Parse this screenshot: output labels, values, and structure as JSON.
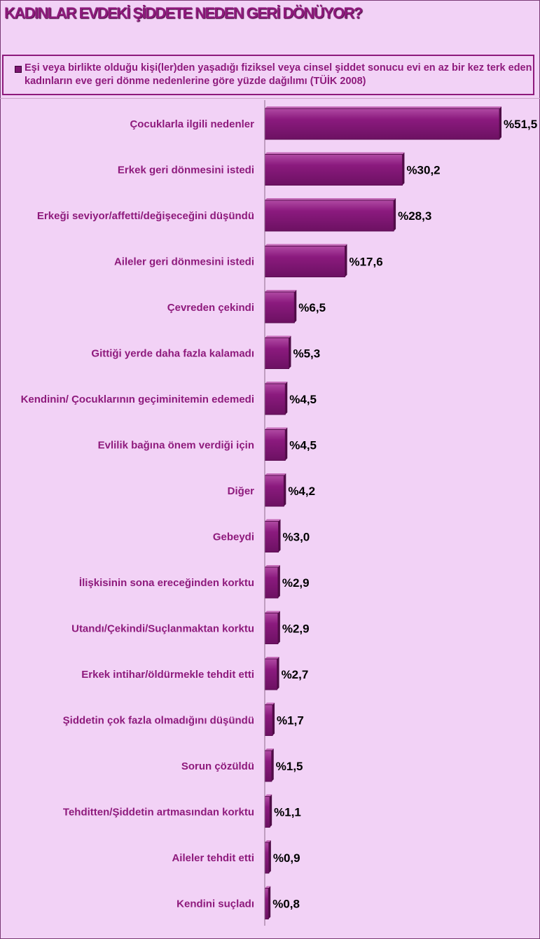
{
  "title": "KADINLAR EVDEKİ ŞİDDETE NEDEN GERİ DÖNÜYOR?",
  "colors": {
    "background": "#f2d2f6",
    "bar_fill": "#8b1a7e",
    "bar_edge": "#5c0f52",
    "label": "#8e1a7c",
    "value_label": "#000000"
  },
  "chart_data": {
    "type": "bar",
    "orientation": "horizontal",
    "title": "KADINLAR EVDEKİ ŞİDDETE NEDEN GERİ DÖNÜYOR?",
    "legend": {
      "position": "top",
      "entries": [
        "Eşi veya birlikte olduğu kişi(ler)den yaşadığı fiziksel veya cinsel şiddet sonucu evi en az bir kez terk eden kadınların eve geri dönme nedenlerine göre yüzde dağılımı (TÜİK 2008)"
      ]
    },
    "xlabel": "",
    "ylabel": "",
    "grid": false,
    "xlim": [
      0,
      51.5
    ],
    "categories": [
      "Çocuklarla ilgili  nedenler",
      "Erkek geri dönmesini istedi",
      "Erkeği seviyor/affetti/değişeceğini  düşündü",
      "Aileler geri dönmesini istedi",
      "Çevreden çekindi",
      "Gittiği  yerde daha fazla kalamadı",
      "Kendinin/  Çocuklarının geçiminitemin edemedi",
      "Evlilik bağına önem verdiği için",
      "Diğer",
      "Gebeydi",
      "İlişkisinin sona ereceğinden korktu",
      "Utandı/Çekindi/Suçlanmaktan korktu",
      "Erkek intihar/öldürmekle tehdit etti",
      "Şiddetin çok fazla olmadığını düşündü",
      "Sorun çözüldü",
      "Tehditten/Şiddetin artmasından korktu",
      "Aileler tehdit etti",
      "Kendini suçladı"
    ],
    "series": [
      {
        "name": "Eşi veya birlikte olduğu kişi(ler)den yaşadığı fiziksel veya cinsel şiddet sonucu evi en az bir kez terk eden kadınların eve geri dönme nedenlerine göre yüzde dağılımı (TÜİK 2008)",
        "values": [
          51.5,
          30.2,
          28.3,
          17.6,
          6.5,
          5.3,
          4.5,
          4.5,
          4.2,
          3.0,
          2.9,
          2.9,
          2.7,
          1.7,
          1.5,
          1.1,
          0.9,
          0.8
        ]
      }
    ],
    "data_labels": [
      "%51,5",
      "%30,2",
      "%28,3",
      "%17,6",
      "%6,5",
      "%5,3",
      "%4,5",
      "%4,5",
      "%4,2",
      "%3,0",
      "%2,9",
      "%2,9",
      "%2,7",
      "%1,7",
      "%1,5",
      "%1,1",
      "%0,9",
      "%0,8"
    ]
  }
}
